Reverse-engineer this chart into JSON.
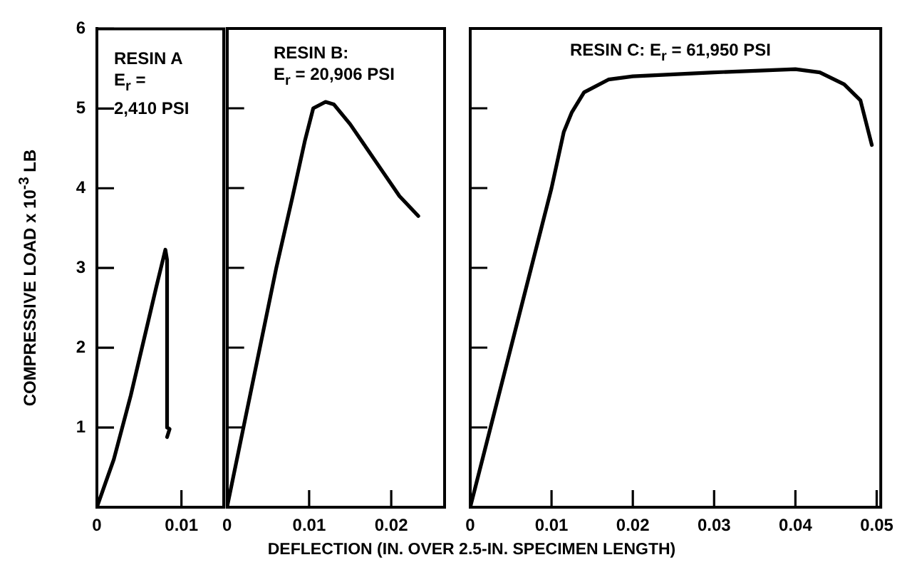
{
  "chart_data": [
    {
      "type": "line",
      "ylabel": "COMPRESSIVE LOAD x 10$^{-3}$ LB",
      "annotations": [
        "RESIN A",
        "E$_{r}$ =",
        "2,410 PSI"
      ],
      "xlim": [
        0,
        0.015
      ],
      "xticks": [
        0,
        0.01
      ],
      "ylim": [
        0,
        6
      ],
      "yticks": [
        1,
        2,
        3,
        4,
        5,
        6
      ],
      "grid": false,
      "legend": false,
      "marker": "none",
      "line_style": "solid",
      "series": [
        {
          "color": "#000000",
          "x": [
            0,
            0.001,
            0.002,
            0.003,
            0.004,
            0.005,
            0.006,
            0.007,
            0.0078,
            0.0081,
            0.0083,
            0.0083,
            0.0086,
            0.0083
          ],
          "values": [
            0,
            0.3,
            0.6,
            1.0,
            1.4,
            1.85,
            2.3,
            2.75,
            3.1,
            3.23,
            3.1,
            1.0,
            0.98,
            0.88
          ]
        }
      ]
    },
    {
      "type": "line",
      "xlabel": "DEFLECTION (IN. OVER 2.5-IN. SPECIMEN LENGTH)",
      "annotations": [
        "RESIN B:",
        "E$_{r}$ = 20,906 PSI"
      ],
      "xlim": [
        0,
        0.0265
      ],
      "xticks": [
        0,
        0.01,
        0.02
      ],
      "ylim": [
        0,
        6
      ],
      "yticks": [
        1,
        2,
        3,
        4,
        5,
        6
      ],
      "tick_labels": "x",
      "grid": false,
      "legend": false,
      "marker": "none",
      "line_style": "solid",
      "series": [
        {
          "color": "#000000",
          "x": [
            0,
            0.002,
            0.004,
            0.006,
            0.008,
            0.0095,
            0.0105,
            0.012,
            0.013,
            0.015,
            0.017,
            0.019,
            0.021,
            0.0233
          ],
          "values": [
            0,
            1,
            2,
            3,
            3.9,
            4.6,
            5.0,
            5.08,
            5.05,
            4.8,
            4.5,
            4.2,
            3.9,
            3.65
          ]
        }
      ]
    },
    {
      "type": "line",
      "annotations": [
        "RESIN C: E$_{r}$ = 61,950 PSI"
      ],
      "xlim": [
        0,
        0.0505
      ],
      "xticks": [
        0,
        0.01,
        0.02,
        0.03,
        0.04,
        0.05
      ],
      "ylim": [
        0,
        6
      ],
      "yticks": [
        1,
        2,
        3,
        4,
        5,
        6
      ],
      "tick_labels": "x",
      "grid": false,
      "legend": false,
      "marker": "none",
      "line_style": "solid",
      "series": [
        {
          "color": "#000000",
          "x": [
            0,
            0.0025,
            0.005,
            0.0075,
            0.01,
            0.0115,
            0.0125,
            0.014,
            0.017,
            0.02,
            0.03,
            0.04,
            0.043,
            0.046,
            0.048,
            0.0494
          ],
          "values": [
            0,
            1,
            2,
            3,
            4,
            4.7,
            4.95,
            5.2,
            5.36,
            5.4,
            5.45,
            5.49,
            5.45,
            5.3,
            5.1,
            4.54
          ]
        }
      ]
    }
  ]
}
